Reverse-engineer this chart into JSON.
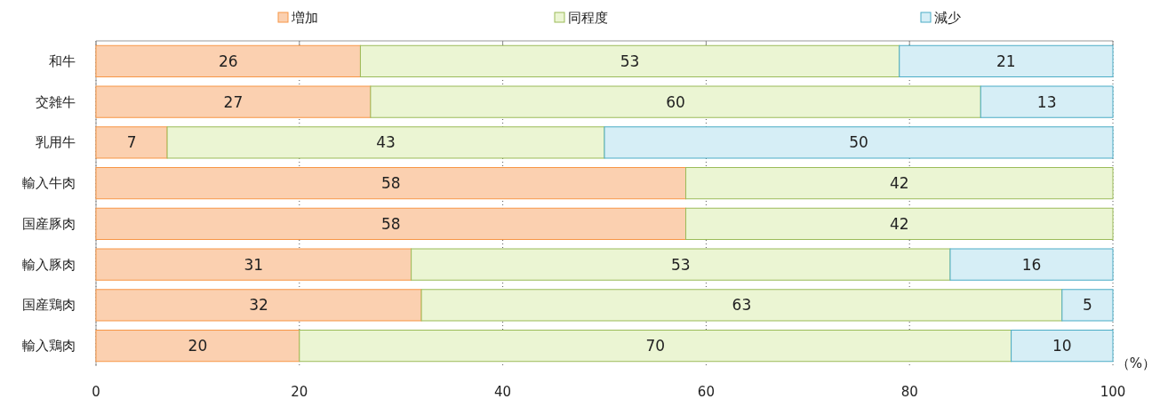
{
  "chart_data": {
    "type": "bar",
    "orientation": "horizontal",
    "stacked": true,
    "categories": [
      "和牛",
      "交雑牛",
      "乳用牛",
      "輸入牛肉",
      "国産豚肉",
      "輸入豚肉",
      "国産鶏肉",
      "輸入鶏肉"
    ],
    "series": [
      {
        "name": "増加",
        "color": "#fbd0b0",
        "values": [
          26,
          27,
          7,
          58,
          58,
          31,
          32,
          20
        ]
      },
      {
        "name": "同程度",
        "color": "#ebf5d3",
        "values": [
          53,
          60,
          43,
          42,
          42,
          53,
          63,
          70
        ]
      },
      {
        "name": "減少",
        "color": "#d6eef6",
        "values": [
          21,
          13,
          50,
          null,
          null,
          16,
          5,
          10
        ]
      }
    ],
    "xlim": [
      0,
      100
    ],
    "xticks": [
      0,
      20,
      40,
      60,
      80,
      100
    ],
    "grid": "x",
    "legend": "top",
    "data_labels": true,
    "annotations": [
      "（%）"
    ]
  }
}
